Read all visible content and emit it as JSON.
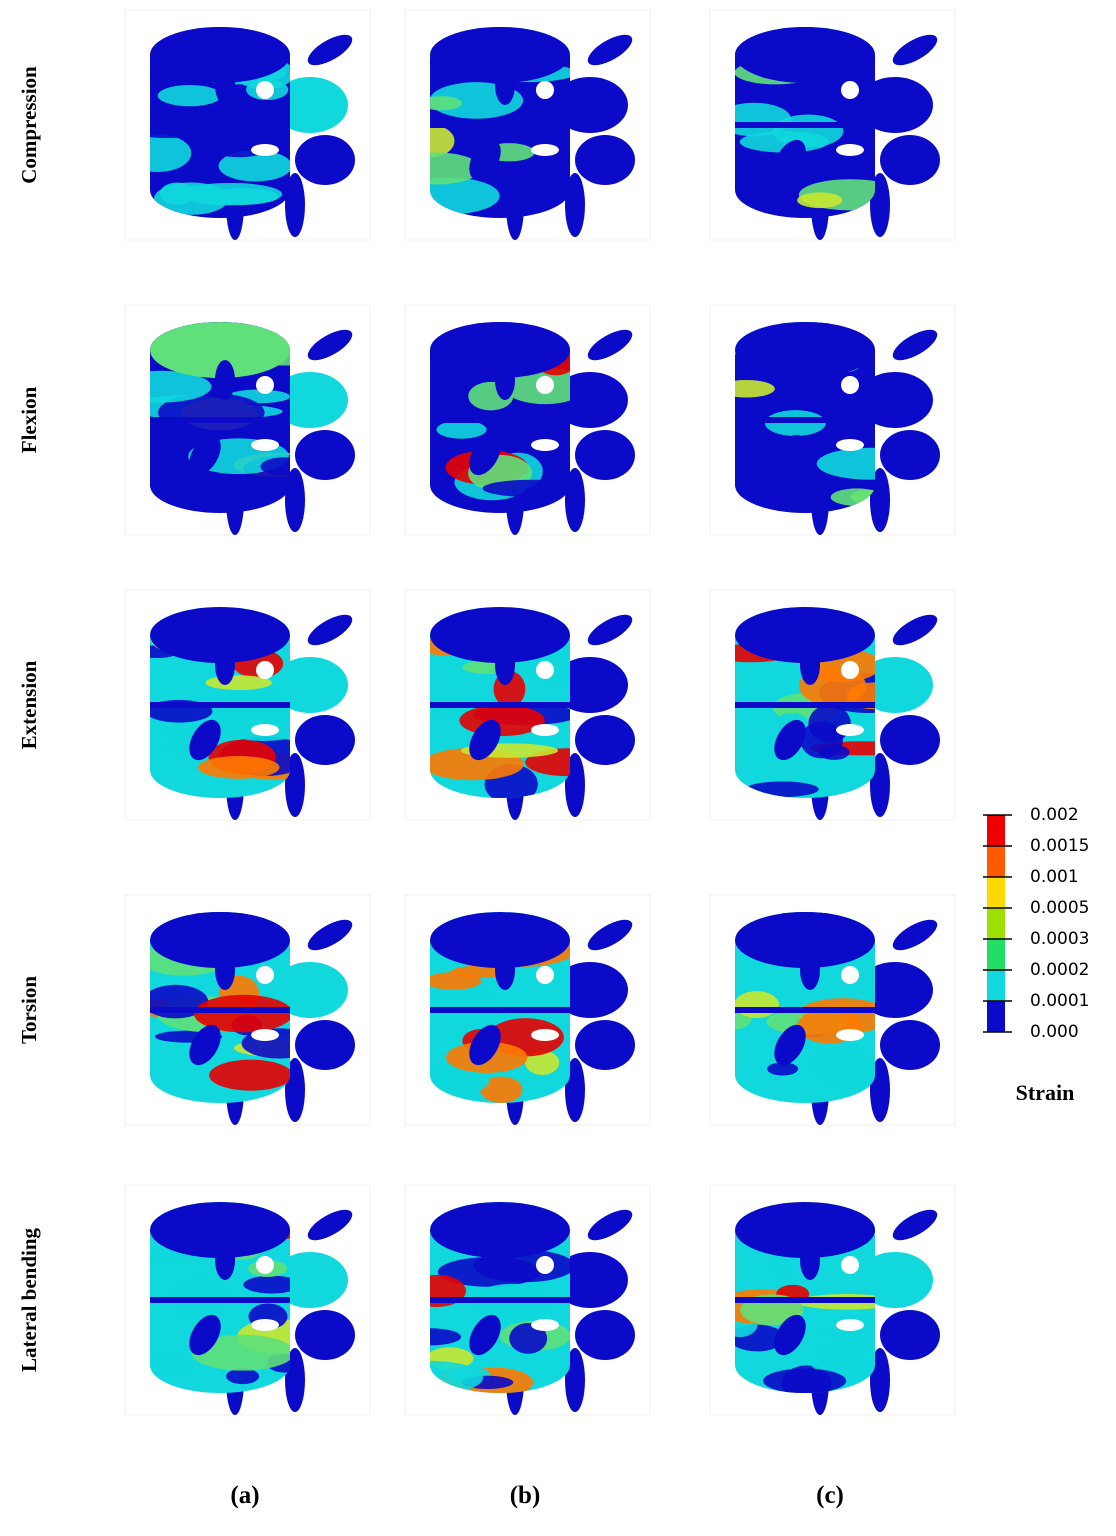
{
  "rows": [
    "Compression",
    "Flexion",
    "Extension",
    "Torsion",
    "Lateral bending"
  ],
  "columns": [
    "(a)",
    "(b)",
    "(c)"
  ],
  "legend": {
    "title": "Strain",
    "labels": [
      "0.002",
      "0.0015",
      "0.001",
      "0.0005",
      "0.0003",
      "0.0002",
      "0.0001",
      "0.000"
    ]
  }
}
